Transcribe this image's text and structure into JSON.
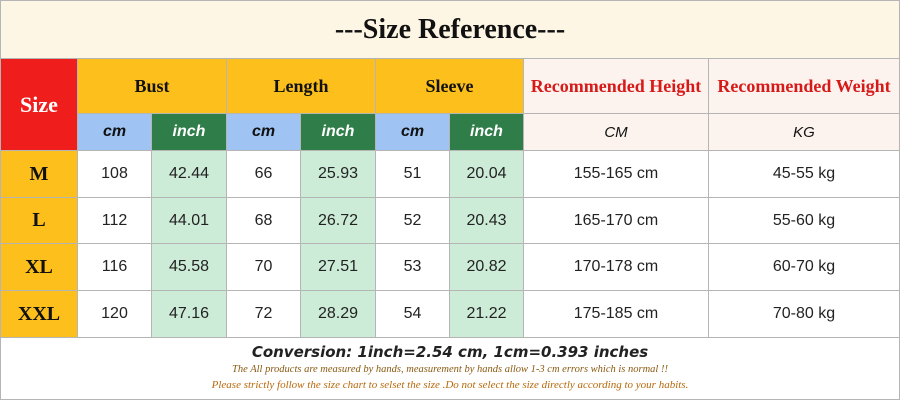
{
  "title": "---Size Reference---",
  "header": {
    "size": "Size",
    "groups": [
      "Bust",
      "Length",
      "Sleeve"
    ],
    "recommended": [
      "Recommended Height",
      "Recommended Weight"
    ]
  },
  "subheader": {
    "units": [
      "cm",
      "inch",
      "cm",
      "inch",
      "cm",
      "inch"
    ],
    "recommended_units": [
      "CM",
      "KG"
    ]
  },
  "rows": [
    [
      "M",
      "108",
      "42.44",
      "66",
      "25.93",
      "51",
      "20.04",
      "155-165 cm",
      "45-55 kg"
    ],
    [
      "L",
      "112",
      "44.01",
      "68",
      "26.72",
      "52",
      "20.43",
      "165-170 cm",
      "55-60 kg"
    ],
    [
      "XL",
      "116",
      "45.58",
      "70",
      "27.51",
      "53",
      "20.82",
      "170-178 cm",
      "60-70 kg"
    ],
    [
      "XXL",
      "120",
      "47.16",
      "72",
      "28.29",
      "54",
      "21.22",
      "175-185 cm",
      "70-80 kg"
    ]
  ],
  "footer": {
    "conversion": "Conversion: 1inch=2.54 cm,  1cm=0.393 inches",
    "notes": [
      "The All products are measured by hands, measurement by hands allow 1-3 cm errors which is normal !!",
      "Please strictly follow the size chart to selset the size .Do not select the size directly according to your habits."
    ]
  }
}
